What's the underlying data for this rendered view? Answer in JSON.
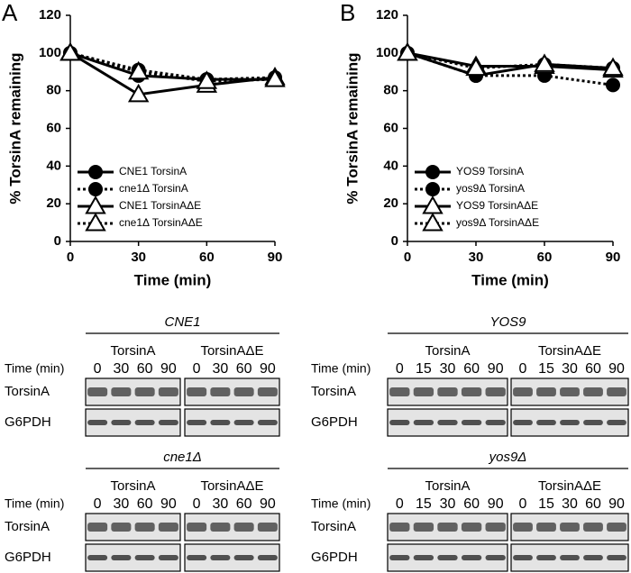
{
  "chart_data": [
    {
      "type": "line",
      "panel_label": "A",
      "y_label": "% TorsinA remaining",
      "x_label": "Time (min)",
      "x": [
        0,
        30,
        60,
        90
      ],
      "xlim": [
        0,
        90
      ],
      "xticks": [
        0,
        30,
        60,
        90
      ],
      "ylim": [
        0,
        120
      ],
      "yticks": [
        0,
        20,
        40,
        60,
        80,
        100,
        120
      ],
      "legend": "lower left",
      "series": [
        {
          "name": "CNE1 TorsinA",
          "color": "#000000",
          "dash": "solid",
          "marker": "circle",
          "values": [
            100,
            88,
            86,
            86
          ]
        },
        {
          "name": "cne1Δ TorsinA",
          "color": "#000000",
          "dash": "dotted",
          "marker": "circle",
          "values": [
            100,
            91,
            86,
            87
          ]
        },
        {
          "name": "CNE1 TorsinAΔE",
          "color": "#000000",
          "dash": "solid",
          "marker": "triangle",
          "values": [
            100,
            78,
            83,
            87
          ]
        },
        {
          "name": "cne1Δ TorsinAΔE",
          "color": "#000000",
          "dash": "dotted",
          "marker": "triangle",
          "values": [
            100,
            90,
            85,
            86
          ]
        }
      ]
    },
    {
      "type": "line",
      "panel_label": "B",
      "y_label": "% TorsinA remaining",
      "x_label": "Time (min)",
      "x": [
        0,
        30,
        60,
        90
      ],
      "xlim": [
        0,
        90
      ],
      "xticks": [
        0,
        30,
        60,
        90
      ],
      "ylim": [
        0,
        120
      ],
      "yticks": [
        0,
        20,
        40,
        60,
        80,
        100,
        120
      ],
      "legend": "lower left",
      "series": [
        {
          "name": "YOS9 TorsinA",
          "color": "#000000",
          "dash": "solid",
          "marker": "circle",
          "values": [
            100,
            88,
            94,
            92
          ]
        },
        {
          "name": "yos9Δ TorsinA",
          "color": "#000000",
          "dash": "dotted",
          "marker": "circle",
          "values": [
            100,
            88,
            88,
            83
          ]
        },
        {
          "name": "YOS9 TorsinAΔE",
          "color": "#000000",
          "dash": "solid",
          "marker": "triangle",
          "values": [
            100,
            93,
            93,
            91
          ]
        },
        {
          "name": "yos9Δ TorsinAΔE",
          "color": "#000000",
          "dash": "dotted",
          "marker": "triangle",
          "values": [
            100,
            92,
            94,
            92
          ]
        }
      ]
    }
  ],
  "blots": [
    {
      "title": "CNE1",
      "time_label": "Time (min)",
      "rows": [
        "TorsinA",
        "G6PDH"
      ],
      "groups": [
        {
          "name": "TorsinA",
          "times": [
            0,
            30,
            60,
            90
          ]
        },
        {
          "name": "TorsinAΔE",
          "times": [
            0,
            30,
            60,
            90
          ]
        }
      ]
    },
    {
      "title": "cne1Δ",
      "time_label": "Time (min)",
      "rows": [
        "TorsinA",
        "G6PDH"
      ],
      "groups": [
        {
          "name": "TorsinA",
          "times": [
            0,
            30,
            60,
            90
          ]
        },
        {
          "name": "TorsinAΔE",
          "times": [
            0,
            30,
            60,
            90
          ]
        }
      ]
    },
    {
      "title": "YOS9",
      "time_label": "Time (min)",
      "rows": [
        "TorsinA",
        "G6PDH"
      ],
      "groups": [
        {
          "name": "TorsinA",
          "times": [
            0,
            15,
            30,
            60,
            90
          ]
        },
        {
          "name": "TorsinAΔE",
          "times": [
            0,
            15,
            30,
            60,
            90
          ]
        }
      ]
    },
    {
      "title": "yos9Δ",
      "time_label": "Time (min)",
      "rows": [
        "TorsinA",
        "G6PDH"
      ],
      "groups": [
        {
          "name": "TorsinA",
          "times": [
            0,
            15,
            30,
            60,
            90
          ]
        },
        {
          "name": "TorsinAΔE",
          "times": [
            0,
            15,
            30,
            60,
            90
          ]
        }
      ]
    }
  ]
}
